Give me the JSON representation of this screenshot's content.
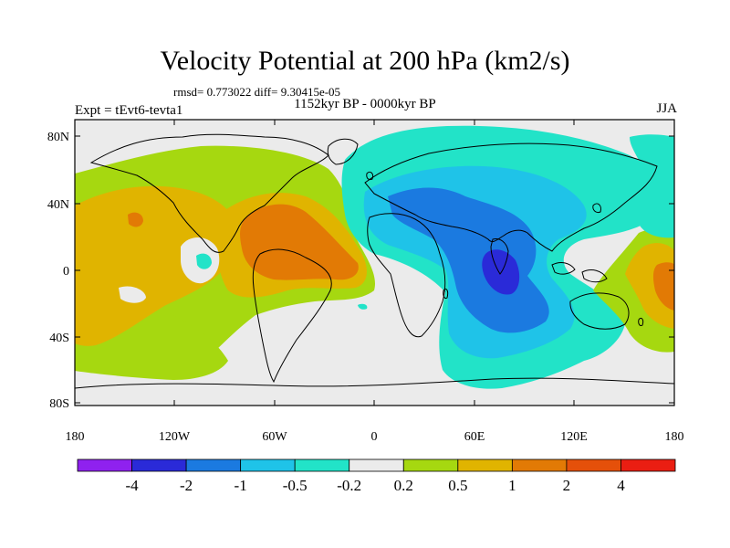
{
  "title": "Velocity Potential at 200 hPa (km2/s)",
  "stats": "rmsd= 0.773022 diff= 9.30415e-05",
  "subtitle": "1152kyr BP - 0000kyr BP",
  "experiment": "Expt = tEvt6-tevta1",
  "season": "JJA",
  "map": {
    "lat_labels": [
      "80N",
      "40N",
      "0",
      "40S",
      "80S"
    ],
    "lon_labels": [
      "180",
      "120W",
      "60W",
      "0",
      "60E",
      "120E",
      "180"
    ]
  },
  "colorbar": {
    "colors": [
      "#8f21ef",
      "#2a2ad8",
      "#1b7ae0",
      "#1fc3e8",
      "#22e3c8",
      "#ebebeb",
      "#a6d810",
      "#e0b400",
      "#e27a05",
      "#e5500a",
      "#ea1e12"
    ],
    "labels": [
      "-4",
      "-2",
      "-1",
      "-0.5",
      "-0.2",
      "0.2",
      "0.5",
      "1",
      "2",
      "4"
    ]
  },
  "colors": {
    "neutral": "#ebebeb",
    "cyan": "#22e3c8",
    "lightblue": "#1fc3e8",
    "blue": "#1b7ae0",
    "darkblue": "#2a2ad8",
    "green": "#a6d810",
    "orange": "#e0b400",
    "darkorange": "#e27a05"
  }
}
